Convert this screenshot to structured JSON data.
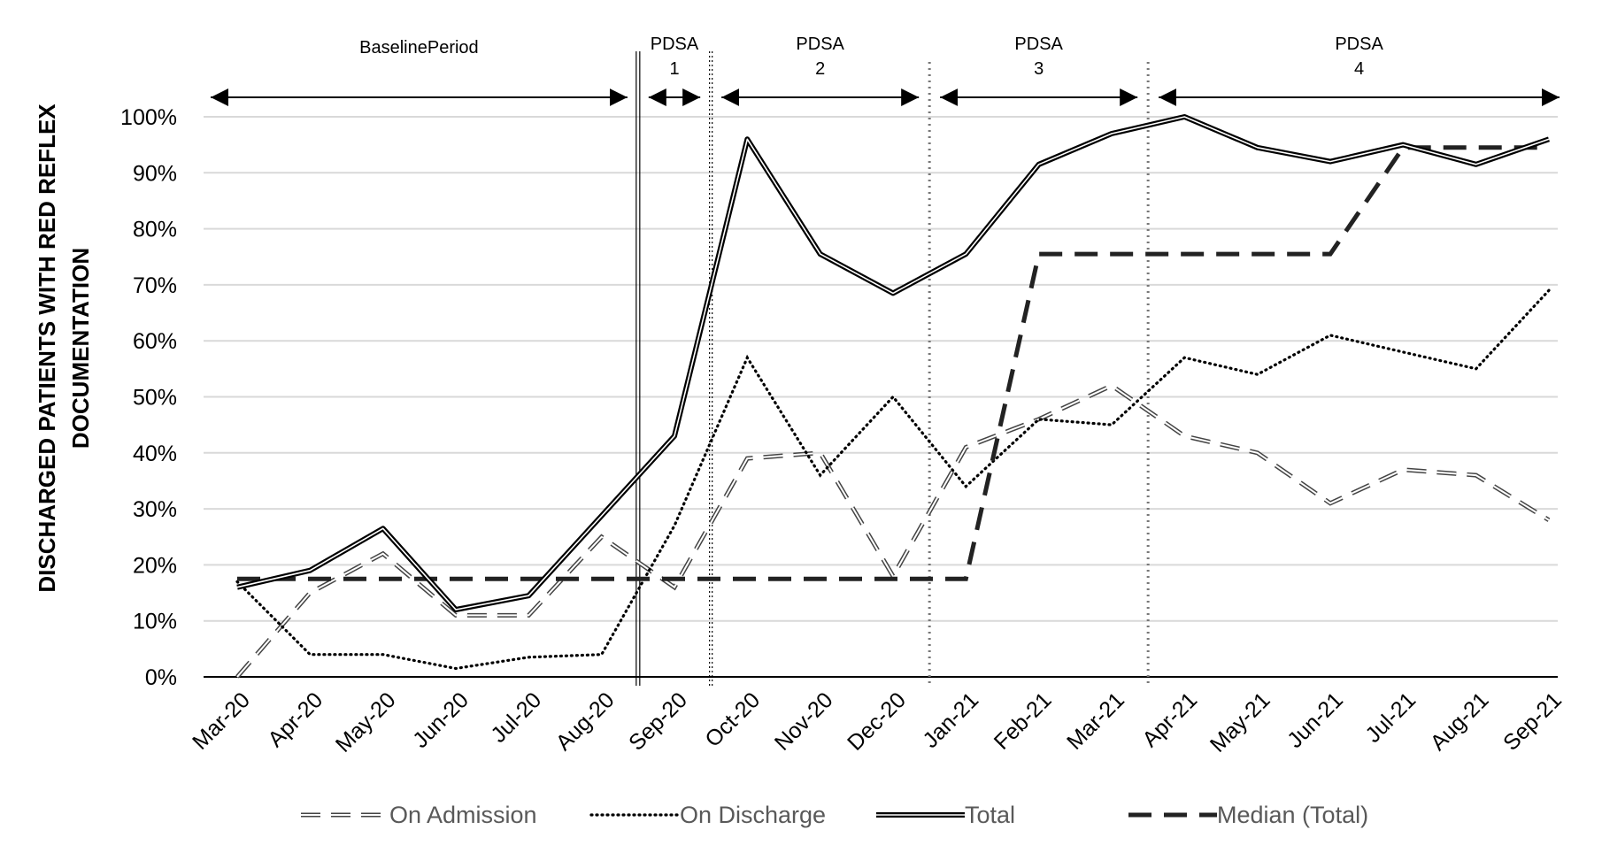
{
  "chart_data": {
    "type": "line",
    "title": "",
    "ylabel_lines": [
      "DISCHARGED PATIENTS WITH RED REFLEX",
      "DOCUMENTATION"
    ],
    "xlabel": "",
    "categories": [
      "Mar-20",
      "Apr-20",
      "May-20",
      "Jun-20",
      "Jul-20",
      "Aug-20",
      "Sep-20",
      "Oct-20",
      "Nov-20",
      "Dec-20",
      "Jan-21",
      "Feb-21",
      "Mar-21",
      "Apr-21",
      "May-21",
      "Jun-21",
      "Jul-21",
      "Aug-21",
      "Sep-21"
    ],
    "y_ticks": [
      "0%",
      "10%",
      "20%",
      "30%",
      "40%",
      "50%",
      "60%",
      "70%",
      "80%",
      "90%",
      "100%"
    ],
    "ylim": [
      0,
      100
    ],
    "grid": "horizontal",
    "legend_position": "bottom",
    "series": [
      {
        "name": "On Admission",
        "style": "double-dashed",
        "values": [
          0,
          15,
          22,
          11,
          11,
          25,
          16,
          39,
          40,
          18,
          41,
          46,
          52,
          43,
          40,
          31,
          37,
          36,
          28
        ]
      },
      {
        "name": "On Discharge",
        "style": "dotted",
        "values": [
          17,
          4,
          4,
          1.5,
          3.5,
          4,
          27,
          57,
          36,
          50,
          34,
          46,
          45,
          57,
          54,
          61,
          58,
          55,
          69
        ]
      },
      {
        "name": "Total",
        "style": "double-solid",
        "values": [
          16,
          19,
          26.5,
          12,
          14.5,
          null,
          43,
          96,
          75.5,
          68.5,
          75.5,
          91.5,
          97,
          100,
          94.5,
          92,
          95,
          91.5,
          96
        ]
      },
      {
        "name": "Median (Total)",
        "style": "bold-dashed",
        "values": [
          17.5,
          17.5,
          17.5,
          17.5,
          17.5,
          17.5,
          17.5,
          17.5,
          17.5,
          17.5,
          17.5,
          75.5,
          75.5,
          75.5,
          75.5,
          75.5,
          94.5,
          94.5,
          94.5
        ]
      }
    ],
    "phases": [
      {
        "label_lines": [
          "BaselinePeriod"
        ],
        "from_index": 0,
        "to_index": 6
      },
      {
        "label_lines": [
          "PDSA",
          "1"
        ],
        "from_index": 6,
        "to_index": 7
      },
      {
        "label_lines": [
          "PDSA",
          "2"
        ],
        "from_index": 7,
        "to_index": 10
      },
      {
        "label_lines": [
          "PDSA",
          "3"
        ],
        "from_index": 10,
        "to_index": 13
      },
      {
        "label_lines": [
          "PDSA",
          "4"
        ],
        "from_index": 13,
        "to_index": 18
      }
    ]
  }
}
